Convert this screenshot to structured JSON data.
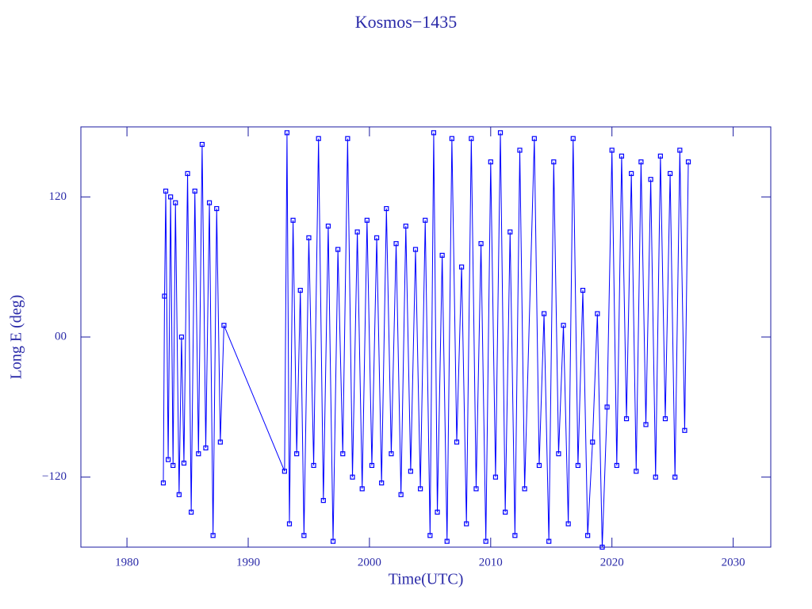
{
  "chart_data": {
    "type": "line",
    "title": "Kosmos−1435",
    "x_label": "Time(UTC)",
    "y_label": "Long E (deg)",
    "xlim": [
      1976.2,
      2033.1
    ],
    "ylim": [
      -180,
      180
    ],
    "xticks": [
      1980,
      1990,
      2000,
      2010,
      2020,
      2030
    ],
    "yticks": [
      {
        "value": -120,
        "label": "−120"
      },
      {
        "value": 0,
        "label": "00"
      },
      120
    ],
    "axis_color": "#1a1aa0",
    "markers": true,
    "series": [
      {
        "color": "#0000ff",
        "x": [
          1983.0,
          1983.1,
          1983.2,
          1983.4,
          1983.6,
          1983.8,
          1984.0,
          1984.3,
          1984.5,
          1984.7,
          1985.0,
          1985.3,
          1985.6,
          1985.9,
          1986.2,
          1986.5,
          1986.8,
          1987.1,
          1987.4,
          1987.7,
          1988.0,
          1993.0,
          1993.2,
          1993.4,
          1993.7,
          1994.0,
          1994.3,
          1994.6,
          1995.0,
          1995.4,
          1995.8,
          1996.2,
          1996.6,
          1997.0,
          1997.4,
          1997.8,
          1998.2,
          1998.6,
          1999.0,
          1999.4,
          1999.8,
          2000.2,
          2000.6,
          2001.0,
          2001.4,
          2001.8,
          2002.2,
          2002.6,
          2003.0,
          2003.4,
          2003.8,
          2004.2,
          2004.6,
          2005.0,
          2005.3,
          2005.6,
          2006.0,
          2006.4,
          2006.8,
          2007.2,
          2007.6,
          2008.0,
          2008.4,
          2008.8,
          2009.2,
          2009.6,
          2010.0,
          2010.4,
          2010.8,
          2011.2,
          2011.6,
          2012.0,
          2012.4,
          2012.8,
          2013.6,
          2014.0,
          2014.4,
          2014.8,
          2015.2,
          2015.6,
          2016.0,
          2016.4,
          2016.8,
          2017.2,
          2017.6,
          2018.0,
          2018.4,
          2018.8,
          2019.2,
          2019.6,
          2020.0,
          2020.4,
          2020.8,
          2021.2,
          2021.6,
          2022.0,
          2022.4,
          2022.8,
          2023.2,
          2023.6,
          2024.0,
          2024.4,
          2024.8,
          2025.2,
          2025.6,
          2026.0,
          2026.3
        ],
        "values": [
          -125,
          35,
          125,
          -105,
          120,
          -110,
          115,
          -135,
          0,
          -108,
          140,
          -150,
          125,
          -100,
          165,
          -95,
          115,
          -170,
          110,
          -90,
          10,
          -115,
          175,
          -160,
          100,
          -100,
          40,
          -170,
          85,
          -110,
          170,
          -140,
          95,
          -175,
          75,
          -100,
          170,
          -120,
          90,
          -130,
          100,
          -110,
          85,
          -125,
          110,
          -100,
          80,
          -135,
          95,
          -115,
          75,
          -130,
          100,
          -170,
          175,
          -150,
          70,
          -175,
          170,
          -90,
          60,
          -160,
          170,
          -130,
          80,
          -175,
          150,
          -120,
          175,
          -150,
          90,
          -170,
          160,
          -130,
          170,
          -110,
          20,
          -175,
          150,
          -100,
          10,
          -160,
          170,
          -110,
          40,
          -170,
          -90,
          20,
          -180,
          -60,
          160,
          -110,
          155,
          -70,
          140,
          -115,
          150,
          -75,
          135,
          -120,
          155,
          -70,
          140,
          -120,
          160,
          -80,
          150
        ]
      }
    ]
  }
}
